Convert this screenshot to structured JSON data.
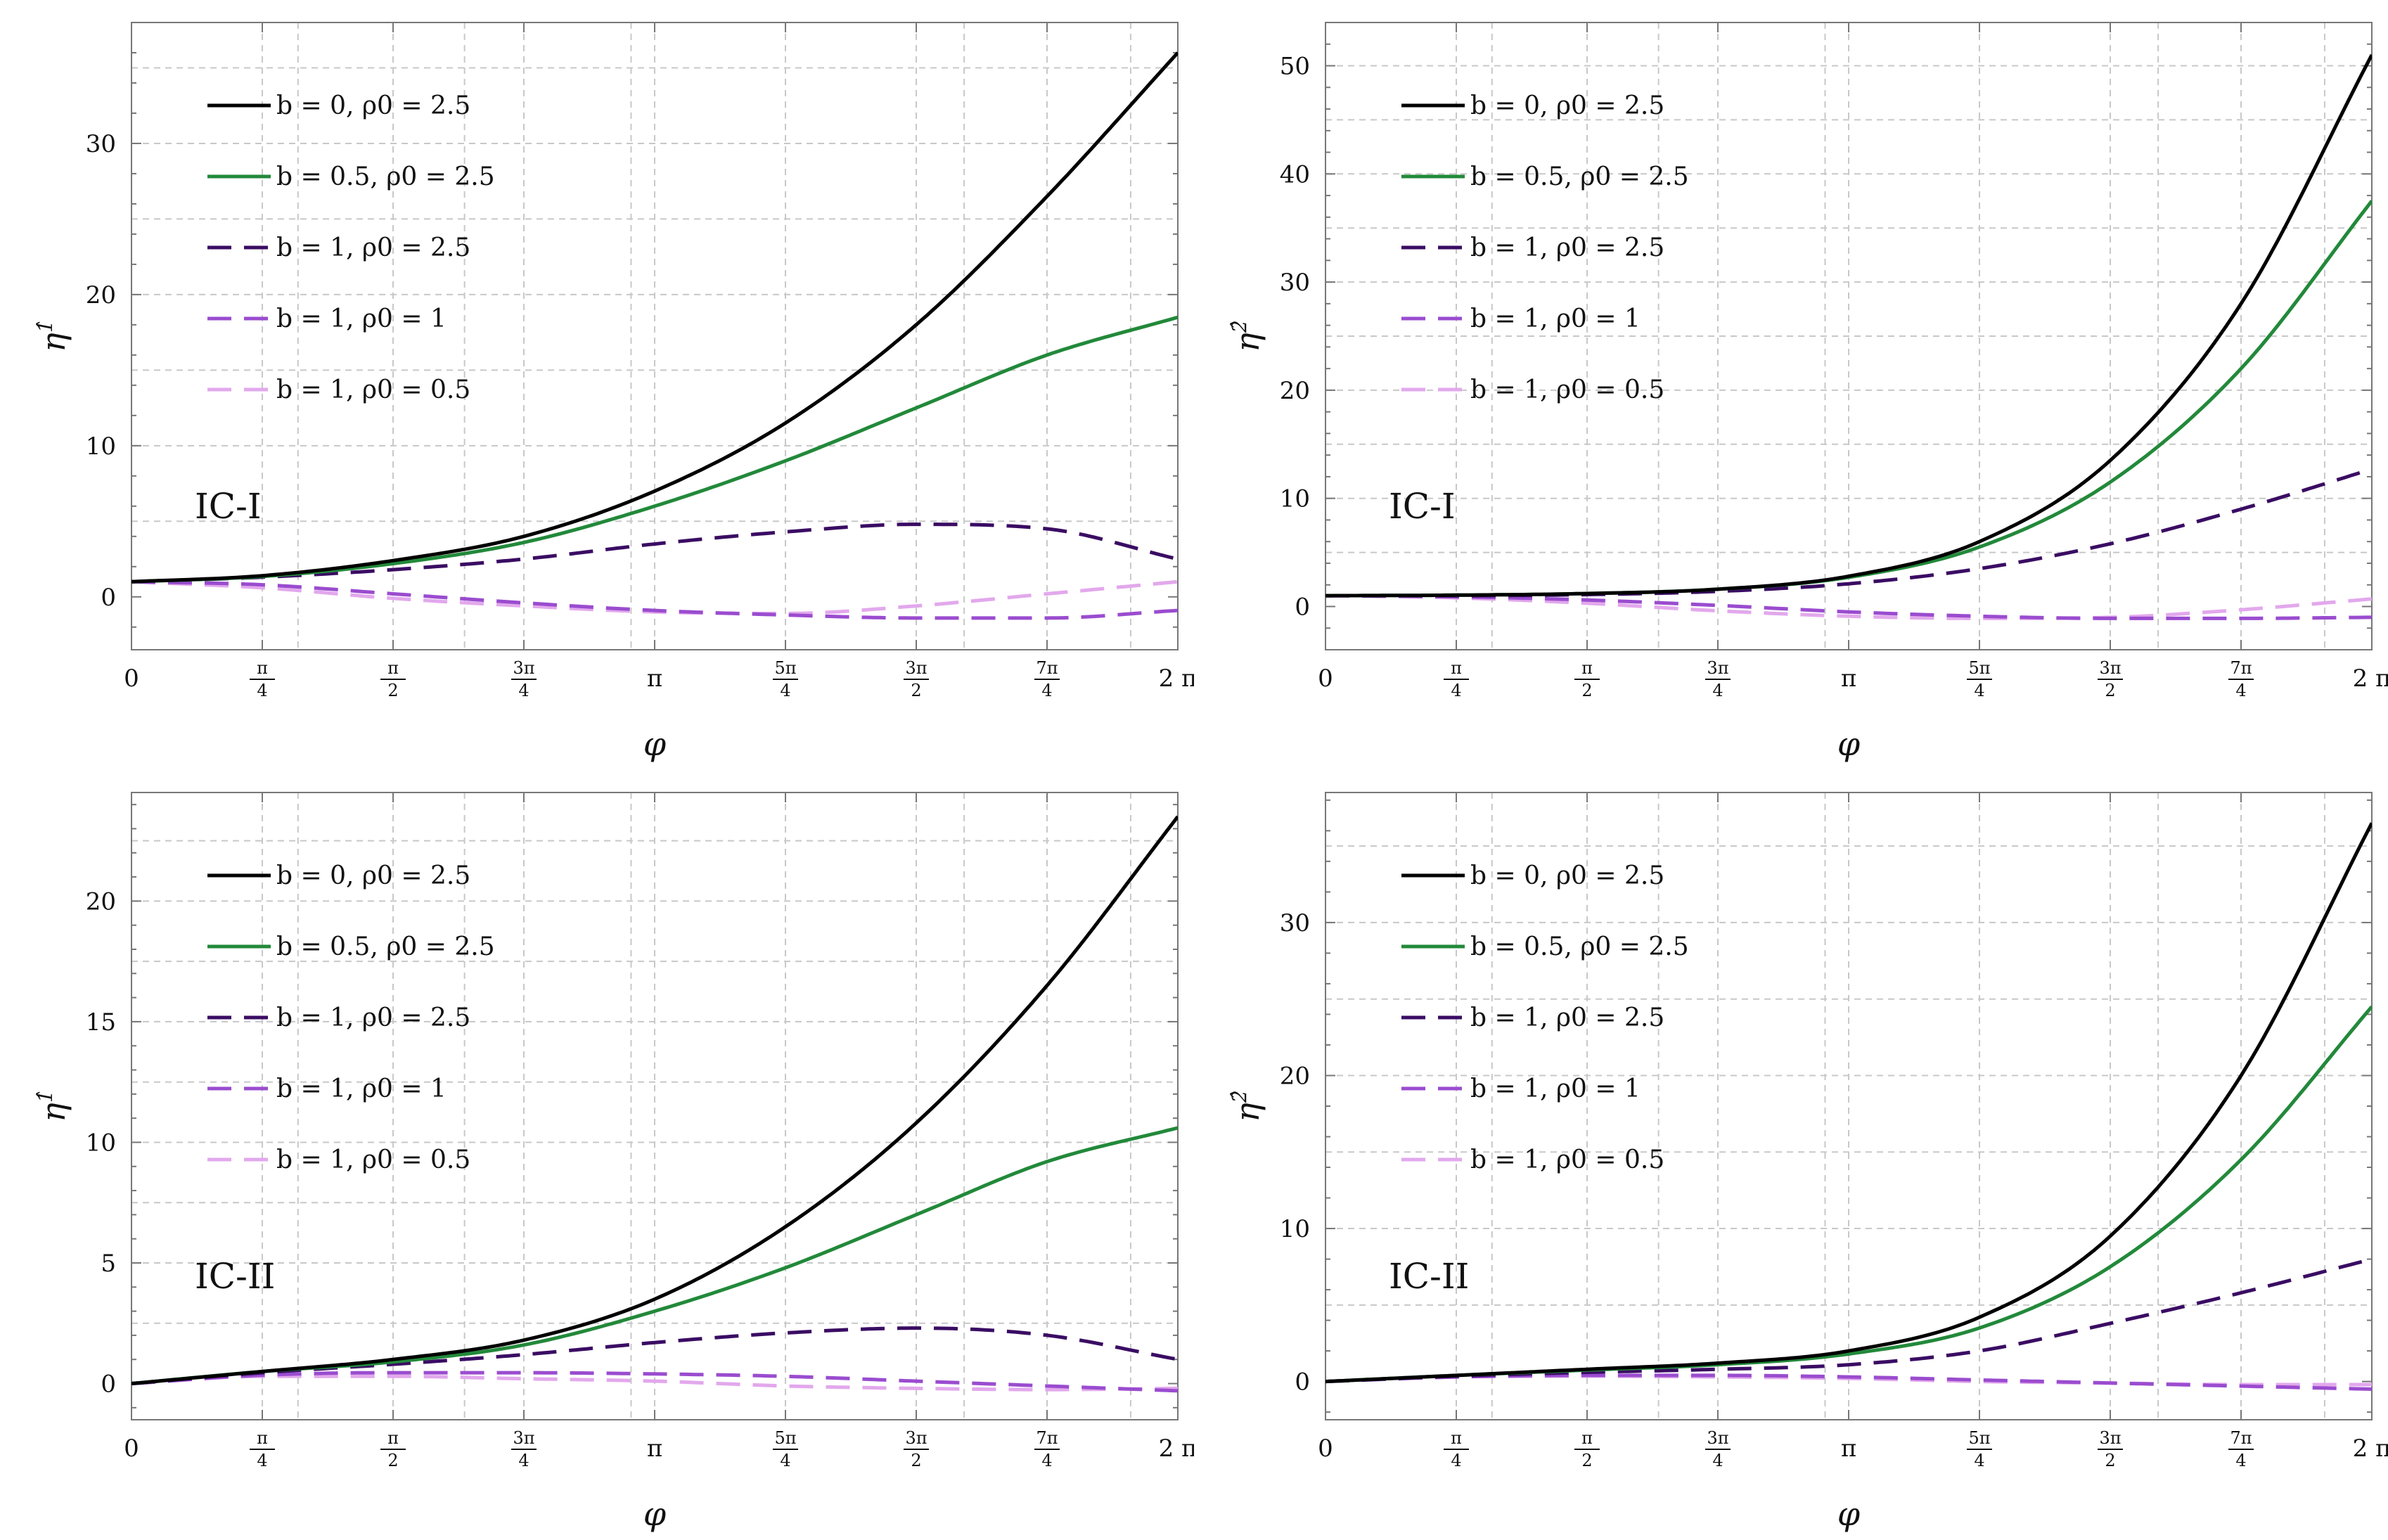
{
  "chart_data": [
    {
      "type": "line",
      "panel": "top-left",
      "annotation": "IC-I",
      "xlabel": "φ",
      "ylabel": "η",
      "ylabel_sup": "1̂",
      "xlim": [
        0,
        6.2832
      ],
      "ylim": [
        -3.5,
        38
      ],
      "yticks": [
        0,
        10,
        20,
        30
      ],
      "legend_location": "top-left",
      "series": [
        {
          "name": "b = 0,  ρ0 = 2.5",
          "x": [
            0,
            0.785,
            1.571,
            2.356,
            3.142,
            3.927,
            4.712,
            5.498,
            6.283
          ],
          "y": [
            1,
            1.4,
            2.4,
            4.0,
            7.0,
            11.5,
            18.0,
            26.5,
            36.0
          ]
        },
        {
          "name": "b = 0.5,  ρ0 = 2.5",
          "x": [
            0,
            0.785,
            1.571,
            2.356,
            3.142,
            3.927,
            4.712,
            5.498,
            6.283
          ],
          "y": [
            1,
            1.35,
            2.2,
            3.6,
            6.0,
            9.0,
            12.5,
            16.0,
            18.5
          ]
        },
        {
          "name": "b = 1,  ρ0 = 2.5",
          "x": [
            0,
            0.785,
            1.571,
            2.356,
            3.142,
            3.927,
            4.712,
            5.498,
            6.283
          ],
          "y": [
            1,
            1.3,
            1.8,
            2.5,
            3.5,
            4.3,
            4.8,
            4.5,
            2.5
          ]
        },
        {
          "name": "b = 1,  ρ0 = 1",
          "x": [
            0,
            0.785,
            1.571,
            2.356,
            3.142,
            3.927,
            4.712,
            5.498,
            6.283
          ],
          "y": [
            1,
            0.8,
            0.2,
            -0.4,
            -0.9,
            -1.2,
            -1.4,
            -1.4,
            -0.9
          ]
        },
        {
          "name": "b = 1,  ρ0 = 0.5",
          "x": [
            0,
            0.785,
            1.571,
            2.356,
            3.142,
            3.927,
            4.712,
            5.498,
            6.283
          ],
          "y": [
            1,
            0.6,
            -0.1,
            -0.6,
            -1.0,
            -1.1,
            -0.6,
            0.2,
            1.0
          ]
        }
      ]
    },
    {
      "type": "line",
      "panel": "top-right",
      "annotation": "IC-I",
      "xlabel": "φ",
      "ylabel": "η",
      "ylabel_sup": "2̂",
      "xlim": [
        0,
        6.2832
      ],
      "ylim": [
        -4,
        54
      ],
      "yticks": [
        0,
        10,
        20,
        30,
        40,
        50
      ],
      "legend_location": "top-left",
      "series": [
        {
          "name": "b = 0,  ρ0 = 2.5",
          "x": [
            0,
            0.785,
            1.571,
            2.356,
            3.142,
            3.927,
            4.712,
            5.498,
            6.283
          ],
          "y": [
            1,
            1.05,
            1.2,
            1.6,
            2.8,
            6.0,
            13.5,
            28.0,
            51.0
          ]
        },
        {
          "name": "b = 0.5,  ρ0 = 2.5",
          "x": [
            0,
            0.785,
            1.571,
            2.356,
            3.142,
            3.927,
            4.712,
            5.498,
            6.283
          ],
          "y": [
            1,
            1.05,
            1.2,
            1.6,
            2.7,
            5.5,
            11.5,
            22.0,
            37.5
          ]
        },
        {
          "name": "b = 1,  ρ0 = 2.5",
          "x": [
            0,
            0.785,
            1.571,
            2.356,
            3.142,
            3.927,
            4.712,
            5.498,
            6.283
          ],
          "y": [
            1,
            1.0,
            1.1,
            1.4,
            2.1,
            3.5,
            5.8,
            9.0,
            12.7
          ]
        },
        {
          "name": "b = 1,  ρ0 = 1",
          "x": [
            0,
            0.785,
            1.571,
            2.356,
            3.142,
            3.927,
            4.712,
            5.498,
            6.283
          ],
          "y": [
            1,
            0.9,
            0.6,
            0.1,
            -0.5,
            -0.9,
            -1.1,
            -1.1,
            -1.0
          ]
        },
        {
          "name": "b = 1,  ρ0 = 0.5",
          "x": [
            0,
            0.785,
            1.571,
            2.356,
            3.142,
            3.927,
            4.712,
            5.498,
            6.283
          ],
          "y": [
            1,
            0.8,
            0.3,
            -0.4,
            -0.9,
            -1.1,
            -1.0,
            -0.3,
            0.7
          ]
        }
      ]
    },
    {
      "type": "line",
      "panel": "bottom-left",
      "annotation": "IC-II",
      "xlabel": "φ",
      "ylabel": "η",
      "ylabel_sup": "1̂",
      "xlim": [
        0,
        6.2832
      ],
      "ylim": [
        -1.5,
        24.5
      ],
      "yticks": [
        0,
        5,
        10,
        15,
        20
      ],
      "legend_location": "top-left",
      "series": [
        {
          "name": "b = 0,  ρ0 = 2.5",
          "x": [
            0,
            0.785,
            1.571,
            2.356,
            3.142,
            3.927,
            4.712,
            5.498,
            6.283
          ],
          "y": [
            0,
            0.5,
            1.0,
            1.8,
            3.5,
            6.5,
            10.8,
            16.5,
            23.5
          ]
        },
        {
          "name": "b = 0.5,  ρ0 = 2.5",
          "x": [
            0,
            0.785,
            1.571,
            2.356,
            3.142,
            3.927,
            4.712,
            5.498,
            6.283
          ],
          "y": [
            0,
            0.5,
            0.9,
            1.6,
            3.0,
            4.8,
            7.0,
            9.2,
            10.6
          ]
        },
        {
          "name": "b = 1,  ρ0 = 2.5",
          "x": [
            0,
            0.785,
            1.571,
            2.356,
            3.142,
            3.927,
            4.712,
            5.498,
            6.283
          ],
          "y": [
            0,
            0.45,
            0.8,
            1.2,
            1.7,
            2.1,
            2.3,
            2.0,
            1.0
          ]
        },
        {
          "name": "b = 1,  ρ0 = 1",
          "x": [
            0,
            0.785,
            1.571,
            2.356,
            3.142,
            3.927,
            4.712,
            5.498,
            6.283
          ],
          "y": [
            0,
            0.35,
            0.45,
            0.45,
            0.4,
            0.3,
            0.1,
            -0.1,
            -0.3
          ]
        },
        {
          "name": "b = 1,  ρ0 = 0.5",
          "x": [
            0,
            0.785,
            1.571,
            2.356,
            3.142,
            3.927,
            4.712,
            5.498,
            6.283
          ],
          "y": [
            0,
            0.3,
            0.3,
            0.2,
            0.1,
            -0.1,
            -0.2,
            -0.25,
            -0.2
          ]
        }
      ]
    },
    {
      "type": "line",
      "panel": "bottom-right",
      "annotation": "IC-II",
      "xlabel": "φ",
      "ylabel": "η",
      "ylabel_sup": "2̂",
      "xlim": [
        0,
        6.2832
      ],
      "ylim": [
        -2.5,
        38.5
      ],
      "yticks": [
        0,
        10,
        20,
        30
      ],
      "legend_location": "top-left",
      "series": [
        {
          "name": "b = 0,  ρ0 = 2.5",
          "x": [
            0,
            0.785,
            1.571,
            2.356,
            3.142,
            3.927,
            4.712,
            5.498,
            6.283
          ],
          "y": [
            0,
            0.4,
            0.8,
            1.2,
            2.0,
            4.2,
            9.5,
            20.0,
            36.5
          ]
        },
        {
          "name": "b = 0.5,  ρ0 = 2.5",
          "x": [
            0,
            0.785,
            1.571,
            2.356,
            3.142,
            3.927,
            4.712,
            5.498,
            6.283
          ],
          "y": [
            0,
            0.4,
            0.75,
            1.1,
            1.8,
            3.5,
            7.5,
            14.5,
            24.5
          ]
        },
        {
          "name": "b = 1,  ρ0 = 2.5",
          "x": [
            0,
            0.785,
            1.571,
            2.356,
            3.142,
            3.927,
            4.712,
            5.498,
            6.283
          ],
          "y": [
            0,
            0.35,
            0.6,
            0.8,
            1.1,
            2.0,
            3.8,
            5.8,
            8.0
          ]
        },
        {
          "name": "b = 1,  ρ0 = 1",
          "x": [
            0,
            0.785,
            1.571,
            2.356,
            3.142,
            3.927,
            4.712,
            5.498,
            6.283
          ],
          "y": [
            0,
            0.3,
            0.4,
            0.4,
            0.3,
            0.1,
            -0.1,
            -0.3,
            -0.5
          ]
        },
        {
          "name": "b = 1,  ρ0 = 0.5",
          "x": [
            0,
            0.785,
            1.571,
            2.356,
            3.142,
            3.927,
            4.712,
            5.498,
            6.283
          ],
          "y": [
            0,
            0.3,
            0.35,
            0.3,
            0.2,
            0.0,
            -0.1,
            -0.2,
            -0.2
          ]
        }
      ]
    }
  ],
  "xticks": [
    {
      "value": 0,
      "main": "0"
    },
    {
      "value": 0.7854,
      "num": "π",
      "den": "4"
    },
    {
      "value": 1.5708,
      "num": "π",
      "den": "2"
    },
    {
      "value": 2.3562,
      "num": "3π",
      "den": "4"
    },
    {
      "value": 3.1416,
      "main": "π"
    },
    {
      "value": 3.927,
      "num": "5π",
      "den": "4"
    },
    {
      "value": 4.7124,
      "num": "3π",
      "den": "2"
    },
    {
      "value": 5.4978,
      "num": "7π",
      "den": "4"
    },
    {
      "value": 6.2832,
      "main": "2 π"
    }
  ],
  "minor_gridlines_x": [
    1.0,
    2.0,
    3.0,
    5.0,
    6.0
  ],
  "colors": {
    "series": [
      "#000000",
      "#22893a",
      "#3a0c63",
      "#9a4ccf",
      "#e2a8ec"
    ],
    "grid": "#c8c8c8",
    "frame": "#777777"
  },
  "dashes": [
    "",
    "",
    "34,18",
    "34,18",
    "34,18"
  ]
}
